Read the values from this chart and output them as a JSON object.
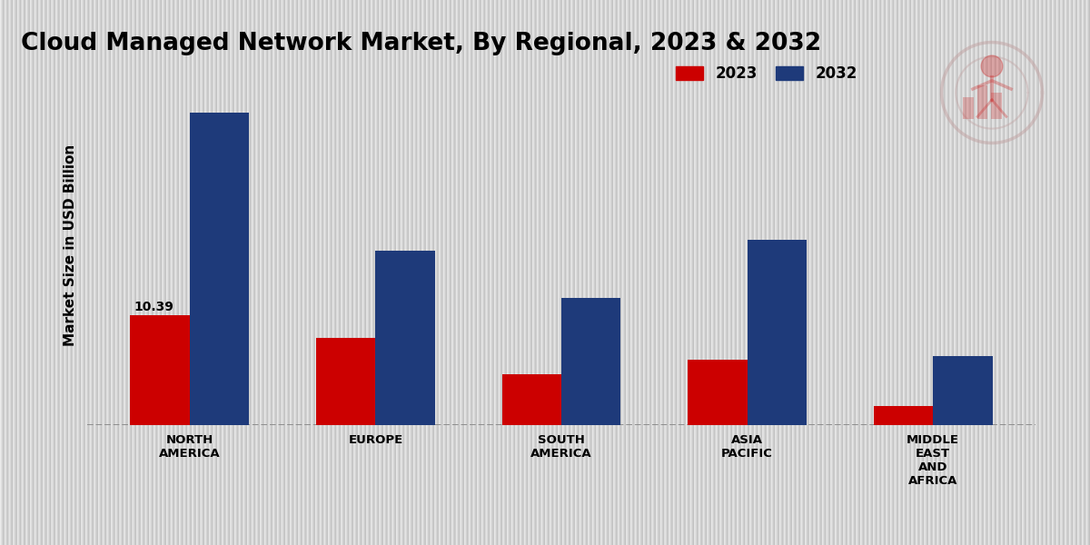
{
  "title": "Cloud Managed Network Market, By Regional, 2023 & 2032",
  "ylabel": "Market Size in USD Billion",
  "categories": [
    "NORTH\nAMERICA",
    "EUROPE",
    "SOUTH\nAMERICA",
    "ASIA\nPACIFIC",
    "MIDDLE\nEAST\nAND\nAFRICA"
  ],
  "values_2023": [
    10.39,
    8.2,
    4.8,
    6.2,
    1.8
  ],
  "values_2032": [
    29.5,
    16.5,
    12.0,
    17.5,
    6.5
  ],
  "color_2023": "#cc0000",
  "color_2032": "#1e3a7a",
  "annotation_value": "10.39",
  "dashed_line_y": 0,
  "bg_top": "#f0f0f0",
  "bg_bottom": "#c8c8c8",
  "legend_labels": [
    "2023",
    "2032"
  ],
  "bar_width": 0.32,
  "ylim": [
    0,
    34
  ],
  "title_fontsize": 19,
  "label_fontsize": 11,
  "tick_fontsize": 9.5,
  "legend_fontsize": 12
}
